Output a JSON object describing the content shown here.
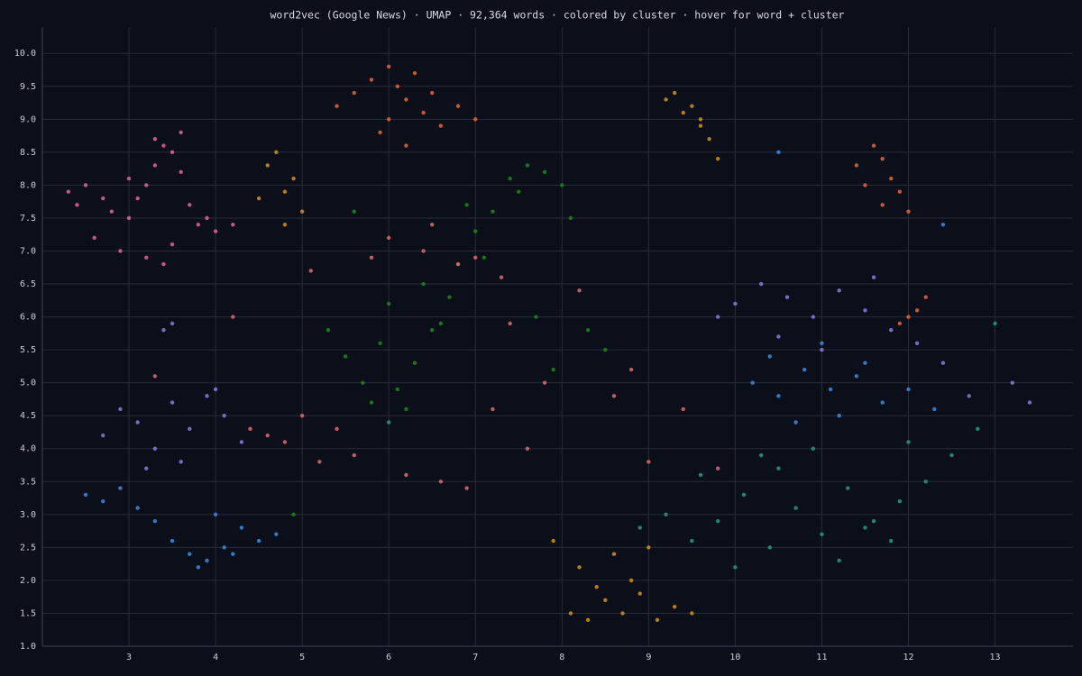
{
  "chart_data": {
    "type": "scatter",
    "title": "word2vec (Google News) · UMAP · 92,364 words · colored by cluster · hover for word + cluster",
    "xlim": [
      2.0,
      13.9
    ],
    "ylim": [
      1.0,
      10.4
    ],
    "xticks": [
      3,
      4,
      5,
      6,
      7,
      8,
      9,
      10,
      11,
      12,
      13
    ],
    "yticks": [
      {
        "value": 1,
        "label": "1.0"
      },
      1.5,
      {
        "value": 2,
        "label": "2.0"
      },
      2.5,
      {
        "value": 3,
        "label": "3.0"
      },
      3.5,
      {
        "value": 4,
        "label": "4.0"
      },
      4.5,
      {
        "value": 5,
        "label": "5.0"
      },
      5.5,
      {
        "value": 6,
        "label": "6.0"
      },
      6.5,
      {
        "value": 7,
        "label": "7.0"
      },
      7.5,
      {
        "value": 8,
        "label": "8.0"
      },
      8.5,
      {
        "value": 9,
        "label": "9.0"
      },
      9.5,
      {
        "value": 10,
        "label": "10.0"
      }
    ],
    "grid": true,
    "series": [
      {
        "color": "#e8609a",
        "x": [
          2.3,
          2.5,
          2.7,
          2.8,
          3.0,
          3.1,
          3.2,
          3.3,
          3.4,
          3.5,
          3.6,
          3.7,
          3.8,
          3.9,
          4.0,
          2.6,
          2.9,
          3.2,
          3.5,
          3.3,
          2.4,
          3.0,
          3.6,
          4.2,
          3.4
        ],
        "values": [
          7.9,
          8.0,
          7.8,
          7.6,
          7.5,
          7.8,
          8.0,
          8.7,
          8.6,
          8.5,
          8.2,
          7.7,
          7.4,
          7.5,
          7.3,
          7.2,
          7.0,
          6.9,
          7.1,
          8.3,
          7.7,
          8.1,
          8.8,
          7.4,
          6.8
        ]
      },
      {
        "color": "#e8643c",
        "x": [
          5.4,
          5.6,
          5.8,
          6.0,
          6.1,
          6.2,
          6.3,
          6.4,
          6.5,
          6.6,
          6.8,
          7.0,
          5.9,
          6.2,
          6.0,
          11.4,
          11.6,
          11.7,
          11.8,
          11.9,
          12.0,
          11.5,
          11.7,
          12.1,
          11.9,
          12.2,
          12.0
        ],
        "values": [
          9.2,
          9.4,
          9.6,
          9.8,
          9.5,
          9.3,
          9.7,
          9.1,
          9.4,
          8.9,
          9.2,
          9.0,
          8.8,
          8.6,
          9.0,
          8.3,
          8.6,
          8.4,
          8.1,
          7.9,
          7.6,
          8.0,
          7.7,
          6.1,
          5.9,
          6.3,
          6.0
        ]
      },
      {
        "color": "#d4901c",
        "x": [
          4.6,
          4.7,
          4.8,
          4.9,
          5.0,
          4.5,
          4.8,
          9.2,
          9.3,
          9.4,
          9.5,
          9.6,
          9.7,
          9.8,
          9.6,
          8.1,
          8.3,
          8.5,
          8.7,
          8.9,
          9.1,
          9.3,
          9.5,
          8.2,
          8.6,
          7.9,
          8.8,
          9.0,
          8.4
        ],
        "values": [
          8.3,
          8.5,
          7.9,
          8.1,
          7.6,
          7.8,
          7.4,
          9.3,
          9.4,
          9.1,
          9.2,
          8.9,
          8.7,
          8.4,
          9.0,
          1.5,
          1.4,
          1.7,
          1.5,
          1.8,
          1.4,
          1.6,
          1.5,
          2.2,
          2.4,
          2.6,
          2.0,
          2.5,
          1.9
        ]
      },
      {
        "color": "#1a8a1a",
        "x": [
          5.5,
          5.7,
          5.9,
          6.1,
          6.3,
          6.5,
          6.0,
          5.8,
          6.4,
          6.8,
          7.0,
          7.2,
          7.4,
          7.6,
          7.8,
          8.0,
          7.5,
          7.7,
          6.6,
          6.9,
          8.3,
          8.5,
          5.3,
          6.2,
          7.1,
          8.1,
          4.9,
          5.6,
          6.7,
          7.9
        ],
        "values": [
          5.4,
          5.0,
          5.6,
          4.9,
          5.3,
          5.8,
          6.2,
          4.7,
          6.5,
          6.8,
          7.3,
          7.6,
          8.1,
          8.3,
          8.2,
          8.0,
          7.9,
          6.0,
          5.9,
          7.7,
          5.8,
          5.5,
          5.8,
          4.6,
          6.9,
          7.5,
          3.0,
          7.6,
          6.3,
          5.2
        ]
      },
      {
        "color": "#e06a6a",
        "x": [
          4.4,
          4.6,
          4.8,
          5.0,
          5.2,
          5.4,
          5.6,
          5.8,
          6.0,
          6.2,
          6.4,
          6.6,
          6.8,
          7.0,
          7.2,
          7.4,
          7.6,
          7.8,
          8.2,
          8.6,
          9.0,
          9.4,
          6.5,
          6.9,
          4.2,
          5.1,
          7.3,
          8.8,
          3.3,
          9.8
        ],
        "values": [
          4.3,
          4.2,
          4.1,
          4.5,
          3.8,
          4.3,
          3.9,
          6.9,
          7.2,
          3.6,
          7.0,
          3.5,
          6.8,
          6.9,
          4.6,
          5.9,
          4.0,
          5.0,
          6.4,
          4.8,
          3.8,
          4.6,
          7.4,
          3.4,
          6.0,
          6.7,
          6.6,
          5.2,
          5.1,
          3.7
        ]
      },
      {
        "color": "#8a7ae0",
        "x": [
          2.7,
          2.9,
          3.1,
          3.3,
          3.5,
          3.7,
          3.9,
          4.1,
          4.3,
          3.2,
          3.6,
          4.0,
          3.4,
          10.0,
          10.3,
          10.6,
          10.9,
          11.2,
          11.5,
          11.8,
          12.1,
          12.4,
          10.5,
          11.0,
          11.6,
          12.7,
          13.2,
          13.4,
          9.8,
          3.5
        ],
        "values": [
          4.2,
          4.6,
          4.4,
          4.0,
          4.7,
          4.3,
          4.8,
          4.5,
          4.1,
          3.7,
          3.8,
          4.9,
          5.8,
          6.2,
          6.5,
          6.3,
          6.0,
          6.4,
          6.1,
          5.8,
          5.6,
          5.3,
          5.7,
          5.5,
          6.6,
          4.8,
          5.0,
          4.7,
          6.0,
          5.9
        ]
      },
      {
        "color": "#3d8ce0",
        "x": [
          2.5,
          2.7,
          2.9,
          3.1,
          3.3,
          3.5,
          3.7,
          3.9,
          4.1,
          4.3,
          4.5,
          4.7,
          3.8,
          4.0,
          4.2,
          10.2,
          10.5,
          10.8,
          11.1,
          11.4,
          11.7,
          12.0,
          10.7,
          11.2,
          11.5,
          12.3,
          10.4,
          11.0,
          12.4,
          10.5
        ],
        "values": [
          3.3,
          3.2,
          3.4,
          3.1,
          2.9,
          2.6,
          2.4,
          2.3,
          2.5,
          2.8,
          2.6,
          2.7,
          2.2,
          3.0,
          2.4,
          5.0,
          4.8,
          5.2,
          4.9,
          5.1,
          4.7,
          4.9,
          4.4,
          4.5,
          5.3,
          4.6,
          5.4,
          5.6,
          7.4,
          8.5
        ]
      },
      {
        "color": "#2a9a7a",
        "x": [
          9.2,
          9.5,
          9.8,
          10.1,
          10.4,
          10.7,
          11.0,
          11.3,
          11.6,
          11.9,
          12.2,
          12.5,
          10.0,
          10.5,
          11.2,
          11.8,
          9.6,
          10.9,
          12.8,
          13.0,
          8.9,
          10.3,
          11.5,
          12.0,
          6.0
        ],
        "values": [
          3.0,
          2.6,
          2.9,
          3.3,
          2.5,
          3.1,
          2.7,
          3.4,
          2.9,
          3.2,
          3.5,
          3.9,
          2.2,
          3.7,
          2.3,
          2.6,
          3.6,
          4.0,
          4.3,
          5.9,
          2.8,
          3.9,
          2.8,
          4.1,
          4.4
        ]
      }
    ]
  }
}
